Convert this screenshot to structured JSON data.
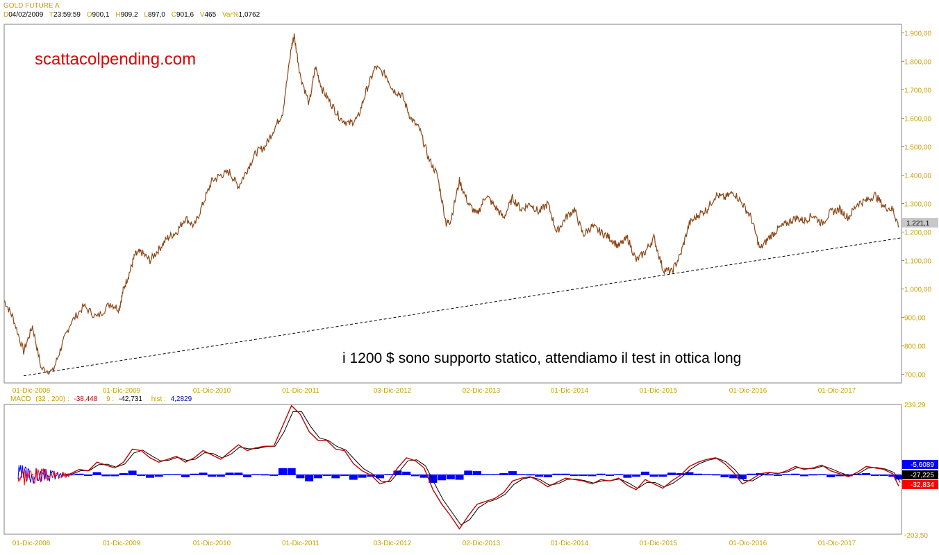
{
  "header": {
    "title": "GOLD FUTURE A",
    "d_label": "D",
    "d_value": "04/02/2009",
    "t_label": "T",
    "t_value": "23:59:59",
    "o_label": "O",
    "o_value": "900,1",
    "h_label": "H",
    "h_value": "909,2",
    "l_label": "L",
    "l_value": "897,0",
    "c_label": "C",
    "c_value": "901,6",
    "v_label": "V",
    "v_value": "465",
    "var_label": "Var%",
    "var_value": "1,0762"
  },
  "watermark": "scattacolpending.com",
  "annotation": "i 1200 $ sono supporto statico, attendiamo il test in ottica long",
  "macd_header": {
    "name": "MACD",
    "params": "(32 , 200) :",
    "macd_value": "-38,448",
    "signal_label": "9 :",
    "signal_value": "-42,731",
    "hist_label": "hist :",
    "hist_value": "4,2829"
  },
  "colors": {
    "price_line": "#8b4513",
    "axis_label": "#c8a000",
    "macd_line": "#c00000",
    "hist_fill": "#0000ff"
  },
  "chart_data": [
    {
      "type": "line",
      "title": "GOLD FUTURE A",
      "x_tick_labels": [
        "01-Dic-2008",
        "01-Dic-2009",
        "01-Dic-2010",
        "01-Dic-2011",
        "03-Dic-2012",
        "02-Dic-2013",
        "01-Dic-2014",
        "01-Dic-2015",
        "01-Dic-2016",
        "01-Dic-2017"
      ],
      "y_tick_labels": [
        "700,00",
        "800,00",
        "900,00",
        "1.000,00",
        "1.100,00",
        "1.200,00",
        "1.300,00",
        "1.400,00",
        "1.500,00",
        "1.600,00",
        "1.700,00",
        "1.800,00",
        "1.900,00"
      ],
      "ylim": [
        670,
        1930
      ],
      "xlim": [
        2008.4,
        2018.55
      ],
      "last_value_label": "1.221,1",
      "series": [
        {
          "x": [
            2008.4,
            2008.5,
            2008.62,
            2008.72,
            2008.82,
            2008.95,
            2009.05,
            2009.15,
            2009.3,
            2009.45,
            2009.6,
            2009.7,
            2009.75,
            2009.82,
            2009.88,
            2009.95,
            2010.05,
            2010.15,
            2010.25,
            2010.35,
            2010.45,
            2010.55,
            2010.65,
            2010.75,
            2010.85,
            2010.95,
            2011.05,
            2011.15,
            2011.25,
            2011.35,
            2011.45,
            2011.55,
            2011.65,
            2011.68,
            2011.75,
            2011.85,
            2011.92,
            2012.0,
            2012.1,
            2012.2,
            2012.3,
            2012.4,
            2012.5,
            2012.6,
            2012.72,
            2012.8,
            2012.9,
            2013.0,
            2013.1,
            2013.2,
            2013.3,
            2013.4,
            2013.45,
            2013.55,
            2013.65,
            2013.75,
            2013.85,
            2013.95,
            2014.05,
            2014.15,
            2014.25,
            2014.35,
            2014.45,
            2014.55,
            2014.65,
            2014.75,
            2014.85,
            2014.95,
            2015.05,
            2015.15,
            2015.25,
            2015.35,
            2015.45,
            2015.55,
            2015.65,
            2015.75,
            2015.85,
            2015.95,
            2016.05,
            2016.15,
            2016.25,
            2016.35,
            2016.45,
            2016.55,
            2016.65,
            2016.75,
            2016.85,
            2016.95,
            2017.05,
            2017.15,
            2017.25,
            2017.35,
            2017.45,
            2017.55,
            2017.65,
            2017.75,
            2017.85,
            2017.95,
            2018.05,
            2018.15,
            2018.25,
            2018.35,
            2018.45,
            2018.52
          ],
          "y": [
            960,
            900,
            780,
            870,
            720,
            710,
            800,
            880,
            940,
            900,
            950,
            930,
            1000,
            1060,
            1120,
            1130,
            1100,
            1140,
            1180,
            1200,
            1250,
            1220,
            1300,
            1380,
            1400,
            1410,
            1360,
            1420,
            1480,
            1500,
            1560,
            1620,
            1850,
            1890,
            1750,
            1650,
            1780,
            1700,
            1650,
            1600,
            1580,
            1600,
            1700,
            1780,
            1750,
            1700,
            1680,
            1600,
            1560,
            1460,
            1400,
            1230,
            1240,
            1380,
            1300,
            1260,
            1330,
            1290,
            1250,
            1320,
            1280,
            1300,
            1270,
            1300,
            1200,
            1250,
            1280,
            1190,
            1220,
            1200,
            1180,
            1150,
            1180,
            1100,
            1130,
            1180,
            1070,
            1060,
            1120,
            1230,
            1260,
            1280,
            1330,
            1320,
            1340,
            1300,
            1250,
            1140,
            1180,
            1210,
            1230,
            1250,
            1240,
            1260,
            1230,
            1270,
            1280,
            1250,
            1300,
            1310,
            1330,
            1290,
            1280,
            1221
          ]
        }
      ],
      "trendline": {
        "x": [
          2008.62,
          2018.55
        ],
        "y": [
          695,
          1180
        ]
      }
    },
    {
      "type": "line",
      "title": "MACD",
      "x_tick_labels": [
        "01-Dic-2008",
        "01-Dic-2009",
        "01-Dic-2010",
        "01-Dic-2011",
        "03-Dic-2012",
        "02-Dic-2013",
        "01-Dic-2014",
        "01-Dic-2015",
        "01-Dic-2016",
        "01-Dic-2017"
      ],
      "y_tick_labels": [
        "239,29",
        "-203,50"
      ],
      "ylim": [
        -203.5,
        239.29
      ],
      "value_boxes": [
        "-5,6089",
        "-27,225",
        "-32,834"
      ],
      "series": [
        {
          "name": "MACD",
          "x": [
            2009.05,
            2009.15,
            2009.25,
            2009.35,
            2009.45,
            2009.55,
            2009.65,
            2009.75,
            2009.85,
            2009.95,
            2010.05,
            2010.15,
            2010.25,
            2010.35,
            2010.45,
            2010.55,
            2010.65,
            2010.75,
            2010.85,
            2010.95,
            2011.05,
            2011.15,
            2011.25,
            2011.35,
            2011.45,
            2011.55,
            2011.65,
            2011.75,
            2011.85,
            2011.95,
            2012.05,
            2012.15,
            2012.25,
            2012.35,
            2012.45,
            2012.55,
            2012.65,
            2012.75,
            2012.85,
            2012.95,
            2013.05,
            2013.15,
            2013.25,
            2013.35,
            2013.45,
            2013.55,
            2013.65,
            2013.75,
            2013.85,
            2013.95,
            2014.05,
            2014.15,
            2014.25,
            2014.35,
            2014.45,
            2014.55,
            2014.65,
            2014.75,
            2014.85,
            2014.95,
            2015.05,
            2015.15,
            2015.25,
            2015.35,
            2015.45,
            2015.55,
            2015.65,
            2015.75,
            2015.85,
            2015.95,
            2016.05,
            2016.15,
            2016.25,
            2016.35,
            2016.45,
            2016.55,
            2016.65,
            2016.75,
            2016.85,
            2016.95,
            2017.05,
            2017.15,
            2017.25,
            2017.35,
            2017.45,
            2017.55,
            2017.65,
            2017.75,
            2017.85,
            2017.95,
            2018.05,
            2018.15,
            2018.25,
            2018.35,
            2018.45,
            2018.52
          ],
          "y": [
            0,
            5,
            20,
            15,
            45,
            35,
            25,
            45,
            90,
            85,
            60,
            45,
            55,
            65,
            45,
            60,
            85,
            70,
            55,
            80,
            105,
            85,
            95,
            100,
            100,
            170,
            240,
            210,
            150,
            120,
            120,
            90,
            85,
            40,
            15,
            0,
            -30,
            -20,
            25,
            60,
            50,
            25,
            -50,
            -100,
            -140,
            -185,
            -140,
            -100,
            -90,
            -80,
            -60,
            -20,
            -10,
            -5,
            -20,
            -40,
            -25,
            -10,
            -15,
            -20,
            -30,
            -15,
            -20,
            -10,
            -35,
            -50,
            -15,
            -30,
            -45,
            -20,
            0,
            30,
            45,
            55,
            60,
            40,
            10,
            -30,
            -15,
            5,
            10,
            5,
            15,
            30,
            20,
            25,
            35,
            15,
            5,
            -5,
            10,
            30,
            25,
            20,
            5,
            -38
          ]
        }
      ]
    }
  ]
}
